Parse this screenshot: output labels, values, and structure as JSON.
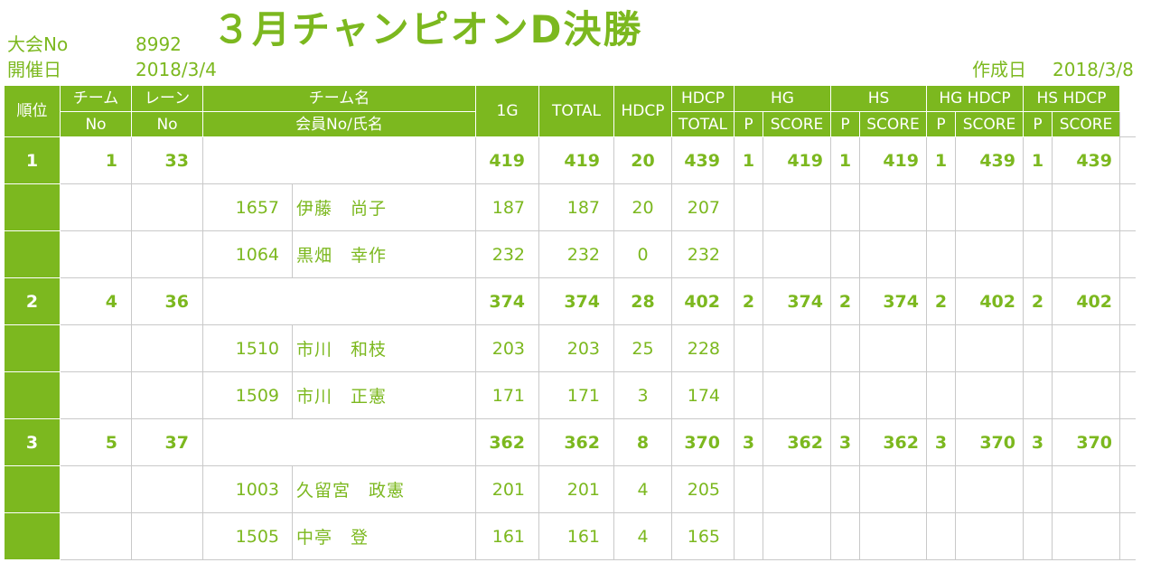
{
  "header": {
    "tournament_no_label": "大会No",
    "tournament_no": "8992",
    "title": "３月チャンピオンD決勝",
    "date_label": "開催日",
    "date": "2018/3/4",
    "created_label": "作成日",
    "created": "2018/3/8"
  },
  "columns": {
    "rank": "順位",
    "team_no_1": "チーム",
    "team_no_2": "No",
    "lane_1": "レーン",
    "lane_2": "No",
    "team_name_1": "チーム名",
    "team_name_2": "会員No/氏名",
    "g1": "1G",
    "total": "TOTAL",
    "hdcp": "HDCP",
    "hdcp_total_1": "HDCP",
    "hdcp_total_2": "TOTAL",
    "hg": "HG",
    "hs": "HS",
    "hg_hdcp": "HG HDCP",
    "hs_hdcp": "HS HDCP",
    "p": "P",
    "score": "SCORE"
  },
  "teams": [
    {
      "rank": "1",
      "team_no": "1",
      "lane": "33",
      "g1": "419",
      "total": "419",
      "hdcp": "20",
      "hdcp_total": "439",
      "hg_p": "1",
      "hg_score": "419",
      "hs_p": "1",
      "hs_score": "419",
      "hgh_p": "1",
      "hgh_score": "439",
      "hsh_p": "1",
      "hsh_score": "439",
      "members": [
        {
          "no": "1657",
          "name": "伊藤　尚子",
          "g1": "187",
          "total": "187",
          "hdcp": "20",
          "hdcp_total": "207"
        },
        {
          "no": "1064",
          "name": "黒畑　幸作",
          "g1": "232",
          "total": "232",
          "hdcp": "0",
          "hdcp_total": "232"
        }
      ]
    },
    {
      "rank": "2",
      "team_no": "4",
      "lane": "36",
      "g1": "374",
      "total": "374",
      "hdcp": "28",
      "hdcp_total": "402",
      "hg_p": "2",
      "hg_score": "374",
      "hs_p": "2",
      "hs_score": "374",
      "hgh_p": "2",
      "hgh_score": "402",
      "hsh_p": "2",
      "hsh_score": "402",
      "members": [
        {
          "no": "1510",
          "name": "市川　和枝",
          "g1": "203",
          "total": "203",
          "hdcp": "25",
          "hdcp_total": "228"
        },
        {
          "no": "1509",
          "name": "市川　正憲",
          "g1": "171",
          "total": "171",
          "hdcp": "3",
          "hdcp_total": "174"
        }
      ]
    },
    {
      "rank": "3",
      "team_no": "5",
      "lane": "37",
      "g1": "362",
      "total": "362",
      "hdcp": "8",
      "hdcp_total": "370",
      "hg_p": "3",
      "hg_score": "362",
      "hs_p": "3",
      "hs_score": "362",
      "hgh_p": "3",
      "hgh_score": "370",
      "hsh_p": "3",
      "hsh_score": "370",
      "members": [
        {
          "no": "1003",
          "name": "久留宮　政憲",
          "g1": "201",
          "total": "201",
          "hdcp": "4",
          "hdcp_total": "205"
        },
        {
          "no": "1505",
          "name": "中亭　登",
          "g1": "161",
          "total": "161",
          "hdcp": "4",
          "hdcp_total": "165"
        }
      ]
    }
  ]
}
